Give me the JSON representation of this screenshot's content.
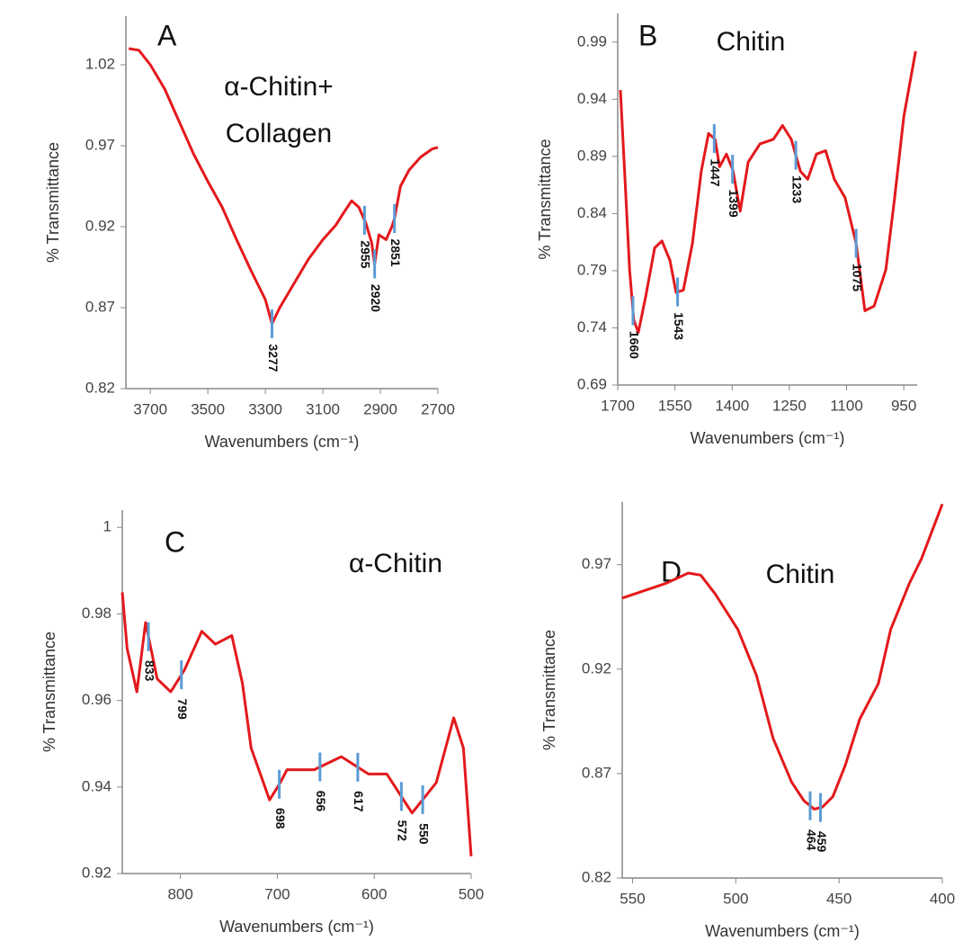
{
  "chart_data": [
    {
      "type": "line",
      "title": "A",
      "annotations": [
        "α-Chitin+",
        "Collagen"
      ],
      "x_label": "Wavenumbers (cm⁻¹)",
      "y_label": "% Transmittance",
      "xlim": [
        3785,
        2700
      ],
      "xticks": [
        3700,
        3500,
        3300,
        3100,
        2900,
        2700
      ],
      "ylim": [
        0.82,
        1.05
      ],
      "yticks": [
        0.82,
        0.87,
        0.92,
        0.97,
        1.02
      ],
      "color": "#e3191c",
      "peak_color": "#5b9bd5",
      "x": [
        3775,
        3740,
        3700,
        3650,
        3600,
        3550,
        3500,
        3450,
        3400,
        3350,
        3300,
        3277,
        3250,
        3200,
        3150,
        3100,
        3055,
        3030,
        3000,
        2975,
        2950,
        2930,
        2920,
        2905,
        2880,
        2860,
        2851,
        2830,
        2800,
        2760,
        2720,
        2700
      ],
      "values": [
        1.03,
        1.029,
        1.02,
        1.005,
        0.985,
        0.965,
        0.948,
        0.932,
        0.912,
        0.893,
        0.875,
        0.86,
        0.87,
        0.885,
        0.9,
        0.912,
        0.921,
        0.928,
        0.936,
        0.932,
        0.922,
        0.91,
        0.897,
        0.915,
        0.912,
        0.92,
        0.925,
        0.945,
        0.955,
        0.963,
        0.968,
        0.969
      ],
      "peaks": [
        3277,
        2955,
        2920,
        2851
      ]
    },
    {
      "type": "line",
      "title": "B",
      "annotations": [
        "Chitin"
      ],
      "x_label": "Wavenumbers (cm⁻¹)",
      "y_label": "% Transmittance",
      "xlim": [
        1700,
        915
      ],
      "xticks": [
        1700,
        1550,
        1400,
        1250,
        1100,
        950
      ],
      "ylim": [
        0.69,
        1.015
      ],
      "yticks": [
        0.69,
        0.74,
        0.79,
        0.84,
        0.89,
        0.94,
        0.99
      ],
      "color": "#e3191c",
      "peak_color": "#5b9bd5",
      "x": [
        1693,
        1681,
        1669,
        1658,
        1646,
        1627,
        1603,
        1584,
        1563,
        1547,
        1528,
        1504,
        1481,
        1462,
        1445,
        1433,
        1415,
        1398,
        1379,
        1358,
        1327,
        1292,
        1268,
        1245,
        1221,
        1202,
        1179,
        1155,
        1132,
        1104,
        1075,
        1052,
        1028,
        997,
        974,
        950,
        919
      ],
      "values": [
        0.948,
        0.87,
        0.791,
        0.747,
        0.736,
        0.767,
        0.81,
        0.816,
        0.799,
        0.771,
        0.773,
        0.814,
        0.877,
        0.91,
        0.905,
        0.881,
        0.892,
        0.878,
        0.842,
        0.885,
        0.901,
        0.905,
        0.917,
        0.905,
        0.877,
        0.87,
        0.892,
        0.895,
        0.87,
        0.854,
        0.814,
        0.755,
        0.759,
        0.791,
        0.854,
        0.925,
        0.982
      ],
      "peaks": [
        1660,
        1543,
        1447,
        1399,
        1233,
        1075
      ]
    },
    {
      "type": "line",
      "title": "C",
      "annotations": [
        "α-Chitin"
      ],
      "x_label": "Wavenumbers (cm⁻¹)",
      "y_label": "% Transmittance",
      "xlim": [
        860,
        500
      ],
      "xticks": [
        800,
        700,
        600,
        500
      ],
      "ylim": [
        0.92,
        1.004
      ],
      "yticks": [
        0.92,
        0.94,
        0.96,
        0.98,
        1
      ],
      "color": "#e3191c",
      "peak_color": "#5b9bd5",
      "x": [
        860,
        855,
        845,
        836,
        824,
        810,
        796,
        778,
        764,
        747,
        736,
        727,
        708,
        697,
        690,
        662,
        634,
        606,
        587,
        561,
        536,
        518,
        508,
        500
      ],
      "values": [
        0.985,
        0.972,
        0.962,
        0.978,
        0.965,
        0.962,
        0.967,
        0.976,
        0.973,
        0.975,
        0.964,
        0.949,
        0.937,
        0.941,
        0.944,
        0.944,
        0.947,
        0.943,
        0.943,
        0.934,
        0.941,
        0.956,
        0.949,
        0.924
      ],
      "peaks": [
        833,
        799,
        698,
        656,
        617,
        572,
        550
      ]
    },
    {
      "type": "line",
      "title": "D",
      "annotations": [
        "Chitin"
      ],
      "x_label": "Wavenumbers (cm⁻¹)",
      "y_label": "% Transmittance",
      "xlim": [
        555,
        400
      ],
      "xticks": [
        550,
        500,
        450,
        400
      ],
      "ylim": [
        0.82,
        1.0
      ],
      "yticks": [
        0.82,
        0.87,
        0.92,
        0.97
      ],
      "color": "#e3191c",
      "peak_color": "#5b9bd5",
      "x": [
        555,
        549,
        534,
        523,
        517,
        510,
        499,
        490,
        482,
        473,
        467,
        462,
        458,
        453,
        447,
        440,
        431,
        425,
        416,
        410,
        400
      ],
      "values": [
        0.954,
        0.956,
        0.961,
        0.966,
        0.965,
        0.956,
        0.939,
        0.917,
        0.887,
        0.866,
        0.857,
        0.853,
        0.854,
        0.859,
        0.874,
        0.896,
        0.913,
        0.939,
        0.961,
        0.973,
        0.999
      ],
      "peaks": [
        464,
        459
      ]
    }
  ]
}
